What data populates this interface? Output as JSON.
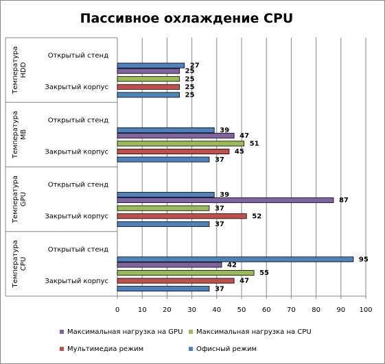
{
  "chart_data": {
    "type": "bar",
    "orientation": "horizontal",
    "title": "Пассивное охлаждение CPU",
    "xlim": [
      0,
      100
    ],
    "x_ticks": [
      0,
      10,
      20,
      30,
      40,
      50,
      60,
      70,
      80,
      90,
      100
    ],
    "grid": "vertical",
    "legend_position": "bottom",
    "groups": [
      "Температура HDD",
      "Температура MB",
      "Температура GPU",
      "Температура CPU"
    ],
    "categories": [
      "Открытый стенд",
      "Закрытый корпус"
    ],
    "series": [
      {
        "name": "Максимальная нагрузка на GPU",
        "color": "#8064a2",
        "values": [
          [
            null,
            25
          ],
          [
            null,
            47
          ],
          [
            null,
            87
          ],
          [
            null,
            42
          ]
        ]
      },
      {
        "name": "Максимальная нагрузка на CPU",
        "color": "#9bbb59",
        "values": [
          [
            null,
            25
          ],
          [
            null,
            51
          ],
          [
            null,
            37
          ],
          [
            null,
            55
          ]
        ]
      },
      {
        "name": "Мультимедиа режим",
        "color": "#c0504d",
        "values": [
          [
            null,
            25
          ],
          [
            null,
            45
          ],
          [
            null,
            52
          ],
          [
            null,
            47
          ]
        ]
      },
      {
        "name": "Офисный режим",
        "color": "#4f81bd",
        "values": [
          [
            27,
            25
          ],
          [
            39,
            37
          ],
          [
            39,
            37
          ],
          [
            95,
            37
          ]
        ]
      }
    ]
  }
}
